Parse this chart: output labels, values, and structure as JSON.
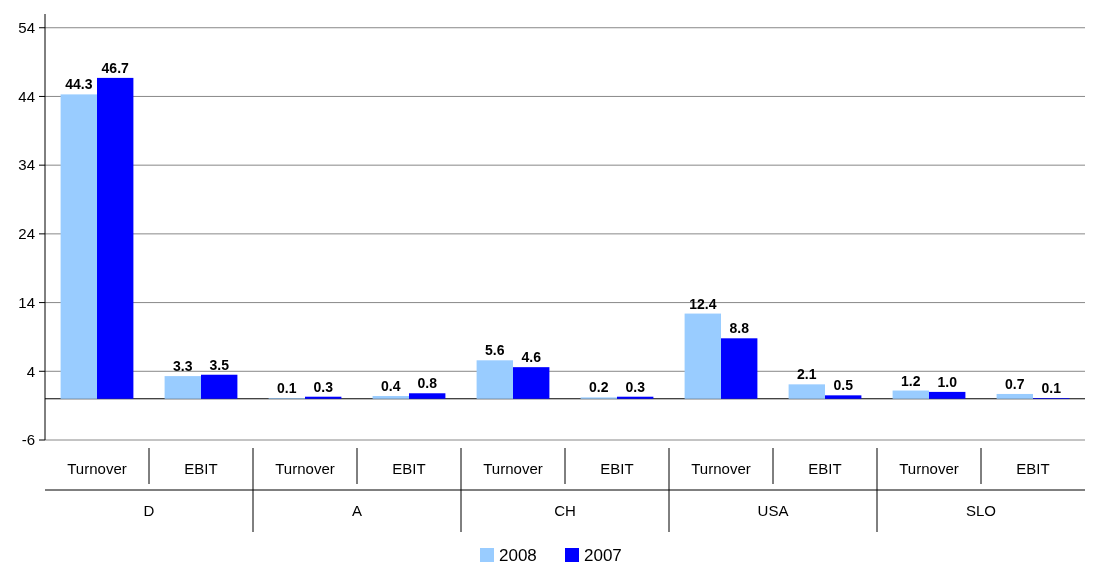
{
  "chart_data": {
    "type": "bar",
    "categories": [
      "Turnover",
      "EBIT",
      "Turnover",
      "EBIT",
      "Turnover",
      "EBIT",
      "Turnover",
      "EBIT",
      "Turnover",
      "EBIT"
    ],
    "series": [
      {
        "name": "2008",
        "color": "#99ccff",
        "values": [
          44.3,
          3.3,
          0.1,
          0.4,
          5.6,
          0.2,
          12.4,
          2.1,
          1.2,
          0.7
        ],
        "value_labels": [
          "44.3",
          "3.3",
          "0.1",
          "0.4",
          "5.6",
          "0.2",
          "12.4",
          "2.1",
          "1.2",
          "0.7"
        ]
      },
      {
        "name": "2007",
        "color": "#0000ff",
        "values": [
          46.7,
          3.5,
          0.3,
          0.8,
          4.6,
          0.3,
          8.8,
          0.5,
          1.0,
          0.1
        ],
        "value_labels": [
          "46.7",
          "3.5",
          "0.3",
          "0.8",
          "4.6",
          "0.3",
          "8.8",
          "0.5",
          "1.0",
          "0.1"
        ]
      }
    ],
    "annotations": [
      "D",
      "A",
      "CH",
      "USA",
      "SLO"
    ],
    "ylim": [
      -6,
      56
    ],
    "yticks": [
      -6,
      4,
      14,
      24,
      34,
      44,
      54
    ],
    "grid": "y",
    "legend": "bottom"
  }
}
